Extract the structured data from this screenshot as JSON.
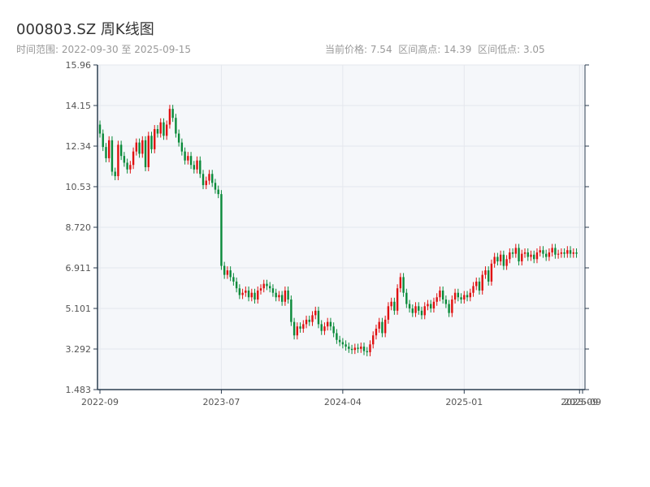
{
  "header": {
    "title": "000803.SZ 周K线图",
    "range_prefix": "时间范围: ",
    "range_start": "2022-09-30",
    "range_sep": " 至 ",
    "range_end": "2025-09-15",
    "current_label": "当前价格: ",
    "current_value": "7.54",
    "high_label": "区间高点: ",
    "high_value": "14.39",
    "low_label": "区间低点: ",
    "low_value": "3.05"
  },
  "colors": {
    "up": "#e01010",
    "down": "#0a8a3a",
    "plot_bg": "#f5f7fa",
    "grid": "#e4e7ed",
    "axis": "#2c3e50"
  },
  "chart_data": {
    "type": "candlestick",
    "title": "000803.SZ 周K线图",
    "ylim": [
      1.483,
      15.96
    ],
    "y_ticks": [
      "15.96",
      "14.15",
      "12.34",
      "10.53",
      "8.720",
      "6.911",
      "5.101",
      "3.292",
      "1.483"
    ],
    "x_ticks": [
      {
        "label": "2022-09",
        "week": 0
      },
      {
        "label": "2023-07",
        "week": 40
      },
      {
        "label": "2024-04",
        "week": 80
      },
      {
        "label": "2025-01",
        "week": 120
      },
      {
        "label": "2025-09",
        "week": 158
      },
      {
        "label": "2025-09",
        "week": 159
      }
    ],
    "weeks": 160,
    "grid": true,
    "close": [
      12.9,
      12.3,
      11.8,
      12.6,
      11.2,
      11.0,
      12.4,
      11.9,
      11.6,
      11.3,
      11.5,
      12.1,
      12.5,
      12.0,
      12.6,
      11.4,
      12.8,
      12.2,
      13.1,
      12.9,
      13.4,
      12.8,
      13.3,
      14.0,
      13.6,
      12.9,
      12.5,
      12.1,
      11.7,
      11.9,
      11.5,
      11.3,
      11.7,
      11.1,
      10.6,
      10.8,
      11.1,
      10.7,
      10.4,
      10.2,
      7.0,
      6.6,
      6.8,
      6.5,
      6.3,
      6.0,
      5.7,
      5.8,
      5.9,
      5.6,
      5.8,
      5.5,
      5.9,
      6.0,
      6.2,
      6.1,
      6.0,
      5.8,
      5.6,
      5.7,
      5.4,
      5.9,
      5.5,
      4.5,
      3.9,
      4.3,
      4.2,
      4.4,
      4.6,
      4.5,
      4.8,
      5.0,
      4.4,
      4.1,
      4.3,
      4.5,
      4.3,
      4.0,
      3.7,
      3.6,
      3.5,
      3.4,
      3.3,
      3.25,
      3.35,
      3.3,
      3.4,
      3.2,
      3.15,
      3.5,
      3.9,
      4.2,
      4.5,
      4.0,
      4.6,
      5.2,
      5.4,
      5.0,
      6.0,
      6.5,
      5.8,
      5.3,
      5.1,
      4.9,
      5.2,
      5.0,
      4.8,
      5.2,
      5.3,
      5.1,
      5.4,
      5.6,
      5.9,
      5.5,
      5.3,
      4.9,
      5.5,
      5.8,
      5.6,
      5.5,
      5.7,
      5.6,
      5.8,
      6.1,
      6.3,
      5.9,
      6.6,
      6.8,
      6.3,
      7.1,
      7.4,
      7.2,
      7.5,
      7.0,
      7.3,
      7.6,
      7.54,
      7.8,
      7.2,
      7.54,
      7.6,
      7.4,
      7.5,
      7.3,
      7.6,
      7.7,
      7.54,
      7.4,
      7.6,
      7.8,
      7.5,
      7.54,
      7.6,
      7.54,
      7.7,
      7.54,
      7.6,
      7.54
    ],
    "note_up_down_colors": [
      "up",
      "down"
    ]
  }
}
